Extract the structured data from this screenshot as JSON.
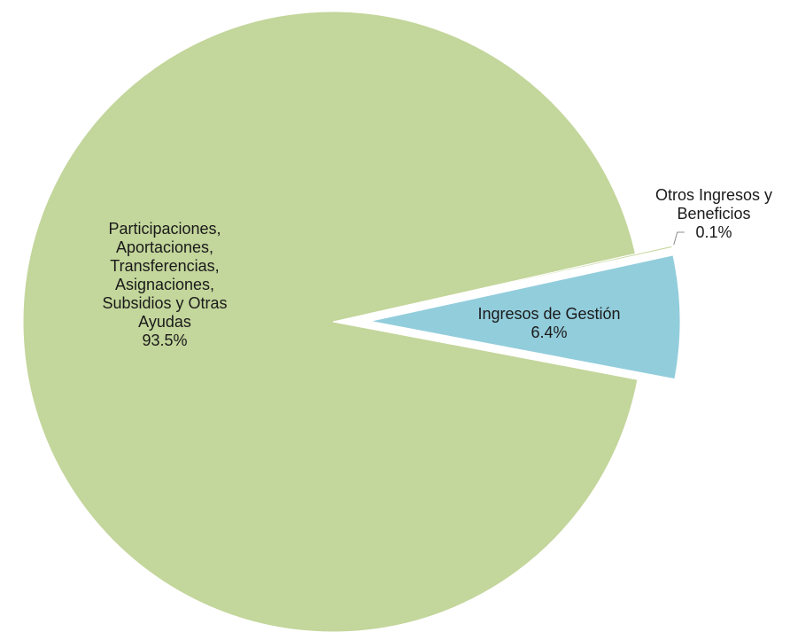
{
  "chart_data": {
    "type": "pie",
    "title": "",
    "slices": [
      {
        "label_lines": [
          "Ingresos de Gestión"
        ],
        "value": 6.4,
        "value_label": "6.4%",
        "color": "#92cddc",
        "exploded": true
      },
      {
        "label_lines": [
          "Participaciones,",
          "Aportaciones,",
          "Transferencias,",
          "Asignaciones,",
          "Subsidios y Otras",
          "Ayudas"
        ],
        "value": 93.5,
        "value_label": "93.5%",
        "color": "#c3d69b",
        "exploded": false
      },
      {
        "label_lines": [
          "Otros Ingresos y",
          "Beneficios"
        ],
        "value": 0.1,
        "value_label": "0.1%",
        "color": "#c3d69b",
        "exploded": true
      }
    ],
    "legend": "none",
    "data_labels": "category and percentage"
  }
}
